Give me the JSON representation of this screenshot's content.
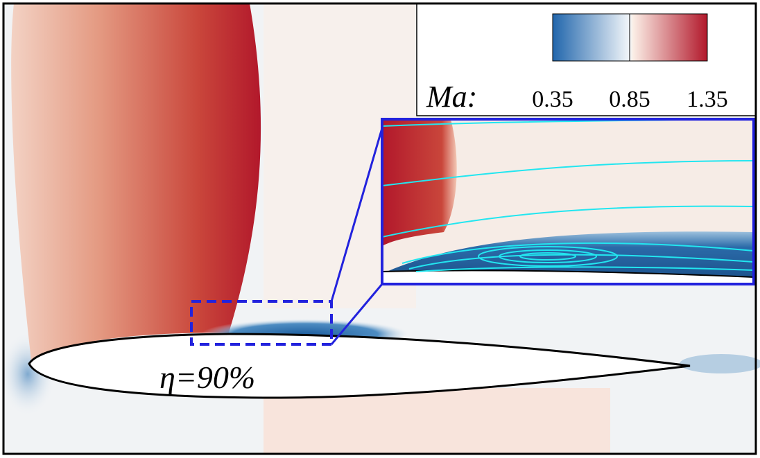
{
  "legend": {
    "label": "Ma:",
    "ticks": [
      "0.35",
      "0.85",
      "1.35"
    ]
  },
  "annotation": "η=90%"
}
